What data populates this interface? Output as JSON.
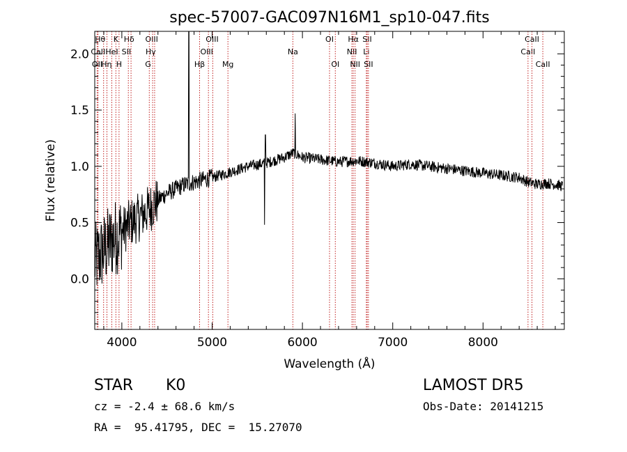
{
  "chart_data": {
    "type": "line",
    "title": "spec-57007-GAC097N16M1_sp10-047.fits",
    "xlabel": "Wavelength (Å)",
    "ylabel": "Flux (relative)",
    "xlim": [
      3700,
      8900
    ],
    "ylim": [
      -0.45,
      2.2
    ],
    "xticks": [
      4000,
      5000,
      6000,
      7000,
      8000
    ],
    "xtick_labels": [
      "4000",
      "5000",
      "6000",
      "7000",
      "8000"
    ],
    "yticks": [
      0.0,
      0.5,
      1.0,
      1.5,
      2.0
    ],
    "ytick_labels": [
      "0.0",
      "0.5",
      "1.0",
      "1.5",
      "2.0"
    ],
    "grid": false,
    "series": [
      {
        "color": "#000000",
        "continuum": {
          "x": [
            3700,
            3800,
            3900,
            4000,
            4100,
            4200,
            4300,
            4400,
            4500,
            4600,
            4700,
            4800,
            5000,
            5200,
            5400,
            5600,
            5800,
            5900,
            6000,
            6200,
            6400,
            6600,
            6800,
            7000,
            7200,
            7400,
            7600,
            7800,
            8000,
            8200,
            8400,
            8500,
            8600,
            8700,
            8800,
            8900
          ],
          "y": [
            0.15,
            0.25,
            0.35,
            0.42,
            0.5,
            0.55,
            0.62,
            0.7,
            0.76,
            0.8,
            0.84,
            0.86,
            0.9,
            0.95,
            1.0,
            1.03,
            1.08,
            1.12,
            1.08,
            1.06,
            1.04,
            1.05,
            1.03,
            1.0,
            1.02,
            1.0,
            0.98,
            0.96,
            0.94,
            0.92,
            0.9,
            0.86,
            0.84,
            0.85,
            0.84,
            0.82
          ]
        },
        "features": [
          {
            "x": 4742,
            "y": 2.2
          },
          {
            "x": 5580,
            "y": 0.48
          },
          {
            "x": 5920,
            "y": 1.47
          },
          {
            "x": 5590,
            "y": 1.28
          }
        ]
      }
    ],
    "lines": [
      {
        "label": "OII",
        "x": 3727,
        "row": 2,
        "label_x": 3727
      },
      {
        "label": "Hθ",
        "x": 3798,
        "row": 0,
        "label_x": 3760
      },
      {
        "label": "CaII",
        "x": 3737,
        "row": 1,
        "label_x": 3737
      },
      {
        "label": "Hη",
        "x": 3835,
        "row": 2,
        "label_x": 3830
      },
      {
        "label": "HeI",
        "x": 3889,
        "row": 1,
        "label_x": 3889
      },
      {
        "label": "K",
        "x": 3934,
        "row": 0,
        "label_x": 3934
      },
      {
        "label": "H",
        "x": 3969,
        "row": 2,
        "label_x": 3969
      },
      {
        "label": "Hδ",
        "x": 4102,
        "row": 0,
        "label_x": 4080
      },
      {
        "label": "SII",
        "x": 4072,
        "row": 1,
        "label_x": 4050
      },
      {
        "label": "OIII",
        "x": 4363,
        "row": 0,
        "label_x": 4330
      },
      {
        "label": "Hγ",
        "x": 4341,
        "row": 1,
        "label_x": 4320
      },
      {
        "label": "G",
        "x": 4304,
        "row": 2,
        "label_x": 4290
      },
      {
        "label": "Hβ",
        "x": 4861,
        "row": 2,
        "label_x": 4861
      },
      {
        "label": "OIII",
        "x": 4959,
        "row": 1,
        "label_x": 4940
      },
      {
        "label": "OIII",
        "x": 5007,
        "row": 0,
        "label_x": 5000
      },
      {
        "label": "Mg",
        "x": 5175,
        "row": 2,
        "label_x": 5175
      },
      {
        "label": "Na",
        "x": 5894,
        "row": 1,
        "label_x": 5894
      },
      {
        "label": "OI",
        "x": 6300,
        "row": 0,
        "label_x": 6300
      },
      {
        "label": "OI",
        "x": 6364,
        "row": 2,
        "label_x": 6364
      },
      {
        "label": "NII",
        "x": 6548,
        "row": 1,
        "label_x": 6548
      },
      {
        "label": "Hα",
        "x": 6563,
        "row": 0,
        "label_x": 6563
      },
      {
        "label": "NII",
        "x": 6583,
        "row": 2,
        "label_x": 6583
      },
      {
        "label": "Li",
        "x": 6708,
        "row": 1,
        "label_x": 6708
      },
      {
        "label": "SII",
        "x": 6717,
        "row": 0,
        "label_x": 6717
      },
      {
        "label": "SII",
        "x": 6731,
        "row": 2,
        "label_x": 6731
      },
      {
        "label": "CaII",
        "x": 8498,
        "row": 1,
        "label_x": 8498
      },
      {
        "label": "CaII",
        "x": 8542,
        "row": 0,
        "label_x": 8542
      },
      {
        "label": "CaII",
        "x": 8662,
        "row": 2,
        "label_x": 8662
      }
    ],
    "line_color": "#c02020",
    "annotations": {
      "object_class": "STAR",
      "subclass": "K0",
      "survey": "LAMOST DR5",
      "cz": "cz = -2.4 ± 68.6 km/s",
      "obs_date": "Obs-Date: 20141215",
      "coords": "RA =  95.41795, DEC =  15.27070"
    }
  }
}
